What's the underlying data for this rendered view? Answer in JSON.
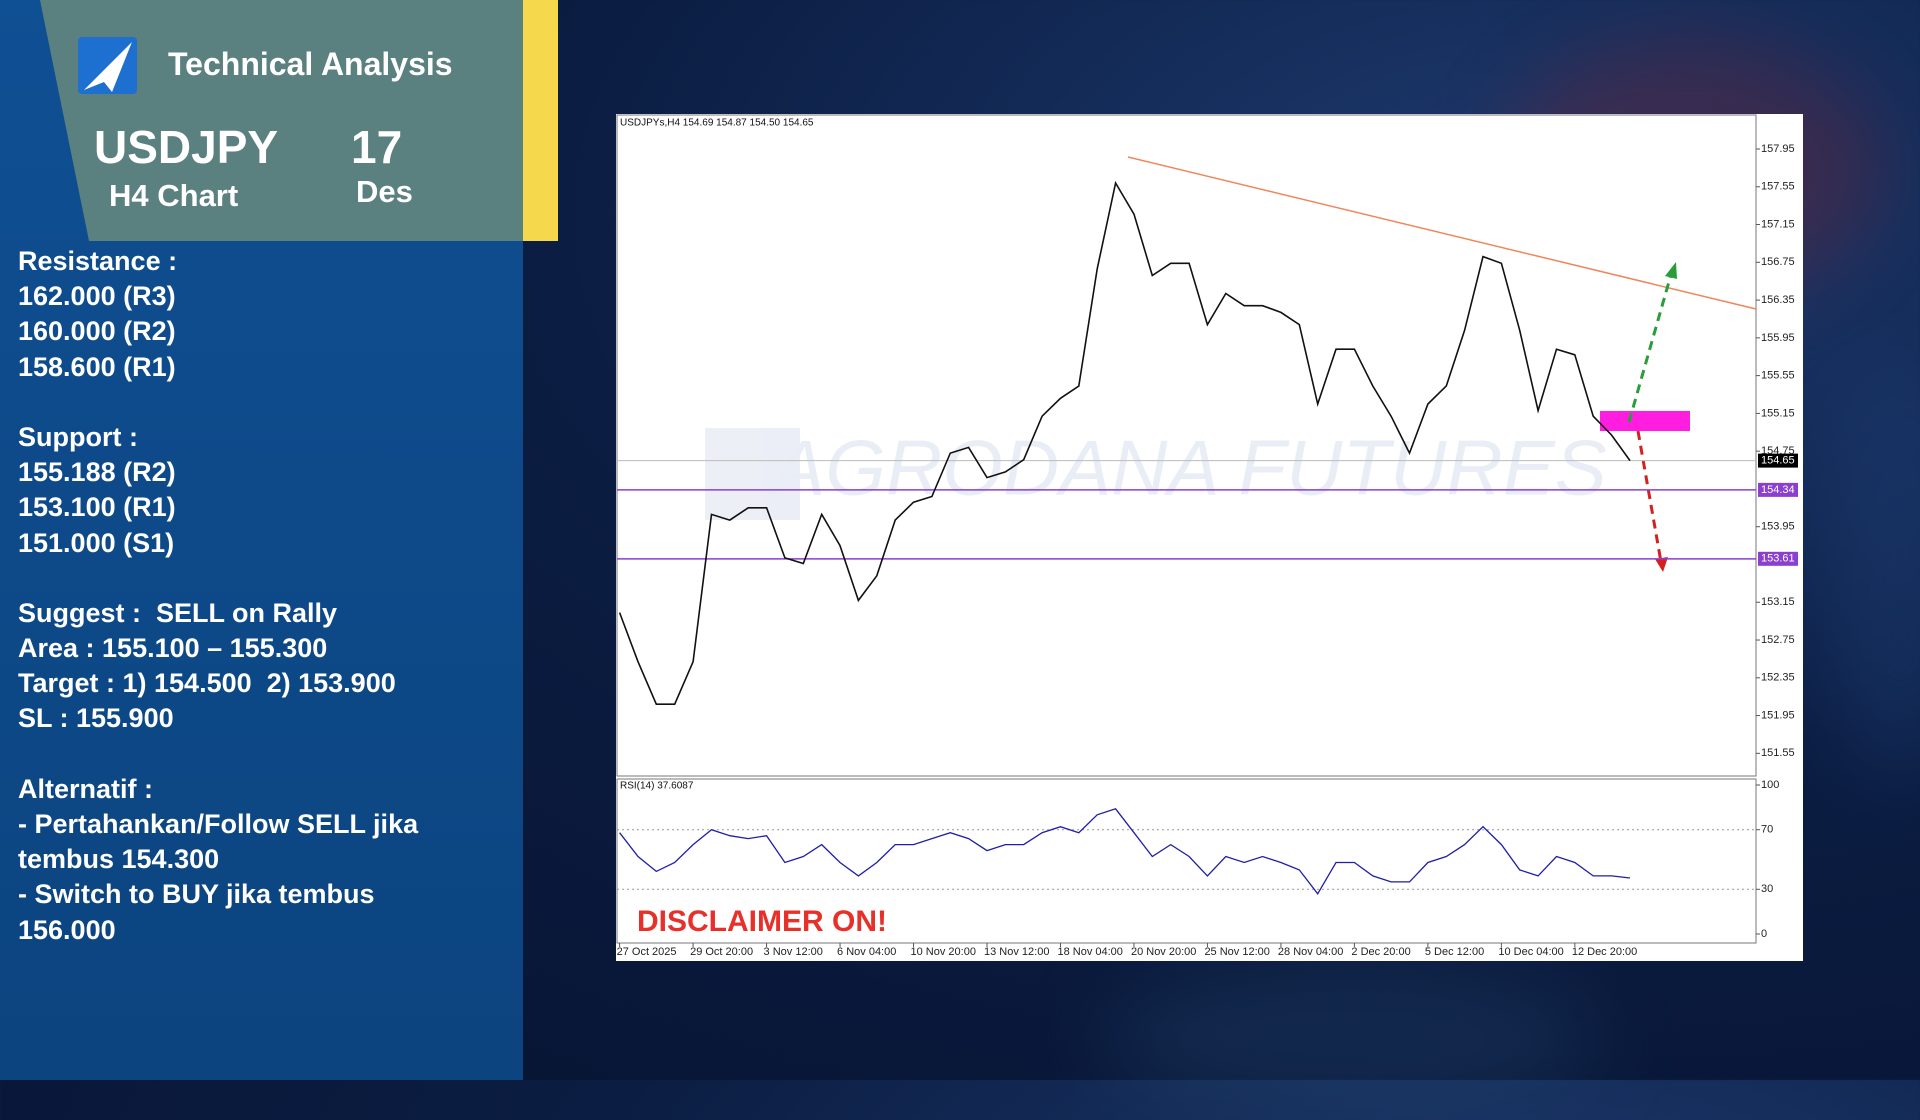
{
  "header": {
    "title": "Technical Analysis",
    "pair": "USDJPY",
    "timeframe": "H4 Chart",
    "day": "17",
    "month": "Des"
  },
  "analysis": {
    "resistance": {
      "label": "Resistance :",
      "levels": [
        "162.000 (R3)",
        "160.000 (R2)",
        "158.600 (R1)"
      ]
    },
    "support": {
      "label": "Support :",
      "levels": [
        "155.188 (R2)",
        "153.100 (R1)",
        "151.000 (S1)"
      ]
    },
    "suggest": [
      "Suggest :  SELL on Rally",
      "Area : 155.100 – 155.300",
      "Target : 1) 154.500  2) 153.900",
      "SL : 155.900"
    ],
    "alternative": {
      "label": "Alternatif :",
      "lines": [
        "- Pertahankan/Follow SELL jika",
        "tembus 154.300",
        "- Switch to BUY jika tembus",
        "156.000"
      ]
    }
  },
  "disclaimer": "DISCLAIMER ON!",
  "chart_data": [
    {
      "type": "line",
      "title": "USDJPYs,H4 154.69 154.87 154.50 154.65",
      "watermark": "AGRODANA FUTURES",
      "color": "#111111",
      "categories": [
        "27 Oct 2025",
        null,
        null,
        null,
        "29 Oct 20:00",
        null,
        null,
        null,
        "3 Nov 12:00",
        null,
        null,
        null,
        "6 Nov 04:00",
        null,
        null,
        null,
        "10 Nov 20:00",
        null,
        null,
        null,
        "13 Nov 12:00",
        null,
        null,
        null,
        "18 Nov 04:00",
        null,
        null,
        null,
        "20 Nov 20:00",
        null,
        null,
        null,
        "25 Nov 12:00",
        null,
        null,
        null,
        "28 Nov 04:00",
        null,
        null,
        null,
        "2 Dec 20:00",
        null,
        null,
        null,
        "5 Dec 12:00",
        null,
        null,
        null,
        "10 Dec 04:00",
        null,
        null,
        null,
        "12 Dec 20:00",
        null,
        null,
        null
      ],
      "values": [
        153.04,
        152.52,
        152.07,
        152.07,
        152.52,
        154.08,
        154.02,
        154.15,
        154.15,
        153.62,
        153.56,
        154.08,
        153.75,
        153.17,
        153.43,
        154.02,
        154.21,
        154.27,
        154.73,
        154.79,
        154.47,
        154.53,
        154.66,
        155.12,
        155.31,
        155.44,
        156.68,
        157.59,
        157.26,
        156.61,
        156.74,
        156.74,
        156.09,
        156.42,
        156.29,
        156.29,
        156.22,
        156.09,
        155.25,
        155.83,
        155.83,
        155.44,
        155.12,
        154.73,
        155.25,
        155.44,
        156.03,
        156.81,
        156.74,
        156.03,
        155.18,
        155.83,
        155.77,
        155.12,
        154.92,
        154.65
      ],
      "ylim": [
        151.31,
        158.31
      ],
      "yticks": [
        151.55,
        151.95,
        152.35,
        152.75,
        153.15,
        153.95,
        154.75,
        155.15,
        155.55,
        155.95,
        156.35,
        156.75,
        157.15,
        157.55,
        157.95
      ],
      "levels": [
        154.34,
        153.61
      ],
      "level_color": "#8a3fd1",
      "current_price": 154.65
    },
    {
      "type": "line",
      "title": "RSI(14) 37.6087",
      "color": "#1f1fa8",
      "values": [
        68,
        52,
        42,
        48,
        60,
        70,
        66,
        64,
        66,
        48,
        52,
        60,
        48,
        39,
        48,
        60,
        60,
        64,
        68,
        64,
        56,
        60,
        60,
        68,
        72,
        68,
        80,
        84,
        68,
        52,
        60,
        52,
        39,
        52,
        48,
        52,
        48,
        43,
        27,
        48,
        48,
        39,
        35,
        35,
        48,
        52,
        60,
        72,
        60,
        43,
        39,
        52,
        48,
        39,
        39,
        37.6
      ],
      "ylim": [
        0,
        100
      ],
      "yticks": [
        100,
        70,
        30,
        0
      ]
    }
  ]
}
